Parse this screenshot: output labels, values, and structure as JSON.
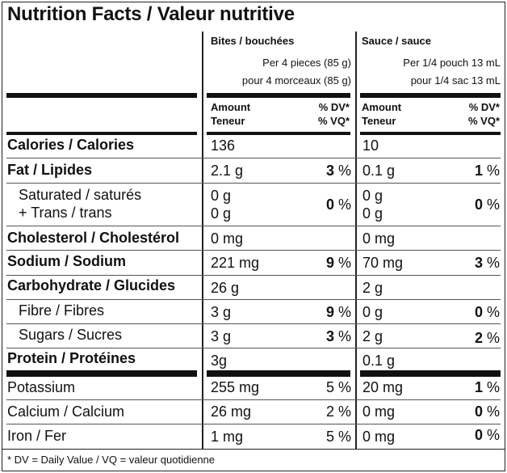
{
  "title": "Nutrition Facts / Valeur nutritive",
  "columns": [
    {
      "name": "Bites / bouchées",
      "serving_en": "Per 4 pieces (85 g)",
      "serving_fr": "pour 4 morceaux (85 g)",
      "amount_label": "Amount",
      "amount_label_fr": "Teneur",
      "dv_label": "% DV*",
      "dv_label_fr": "% VQ*"
    },
    {
      "name": "Sauce / sauce",
      "serving_en": "Per 1/4 pouch 13 mL",
      "serving_fr": "pour 1/4 sac 13 mL",
      "amount_label": "Amount",
      "amount_label_fr": "Teneur",
      "dv_label": "% DV*",
      "dv_label_fr": "% VQ*"
    }
  ],
  "nutrients": {
    "calories": {
      "label": "Calories / Calories",
      "bites": "136",
      "sauce": "10"
    },
    "fat": {
      "label": "Fat / Lipides",
      "bites": "2.1 g",
      "bites_dv": "3",
      "sauce": "0.1 g",
      "sauce_dv": "1"
    },
    "saturated": {
      "label": "Saturated / saturés",
      "label2": "+ Trans / trans",
      "bites": "0 g",
      "bites2": "0 g",
      "bites_dv": "0",
      "sauce": "0 g",
      "sauce2": "0 g",
      "sauce_dv": "0"
    },
    "cholesterol": {
      "label": "Cholesterol / Cholestérol",
      "bites": "0 mg",
      "sauce": "0 mg"
    },
    "sodium": {
      "label": "Sodium / Sodium",
      "bites": "221 mg",
      "bites_dv": "9",
      "sauce": "70 mg",
      "sauce_dv": "3"
    },
    "carbohydrate": {
      "label": "Carbohydrate / Glucides",
      "bites": "26 g",
      "sauce": "2 g"
    },
    "fibre": {
      "label": "Fibre / Fibres",
      "bites": "3 g",
      "bites_dv": "9",
      "sauce": "0 g",
      "sauce_dv": "0"
    },
    "sugars": {
      "label": "Sugars / Sucres",
      "bites": "3 g",
      "bites_dv": "3",
      "sauce": "2 g",
      "sauce_dv": "2"
    },
    "protein": {
      "label": "Protein / Protéines",
      "bites": "3g",
      "sauce": "0.1 g"
    },
    "potassium": {
      "label": "Potassium",
      "bites": "255 mg",
      "bites_dv": "5",
      "sauce": "20 mg",
      "sauce_dv": "1"
    },
    "calcium": {
      "label": "Calcium / Calcium",
      "bites": "26 mg",
      "bites_dv": "2",
      "sauce": "0 mg",
      "sauce_dv": "0"
    },
    "iron": {
      "label": "Iron / Fer",
      "bites": "1 mg",
      "bites_dv": "5",
      "sauce": "0 mg",
      "sauce_dv": "0"
    }
  },
  "percent_sign": "%",
  "footnote": "* DV = Daily Value / VQ = valeur quotidienne"
}
